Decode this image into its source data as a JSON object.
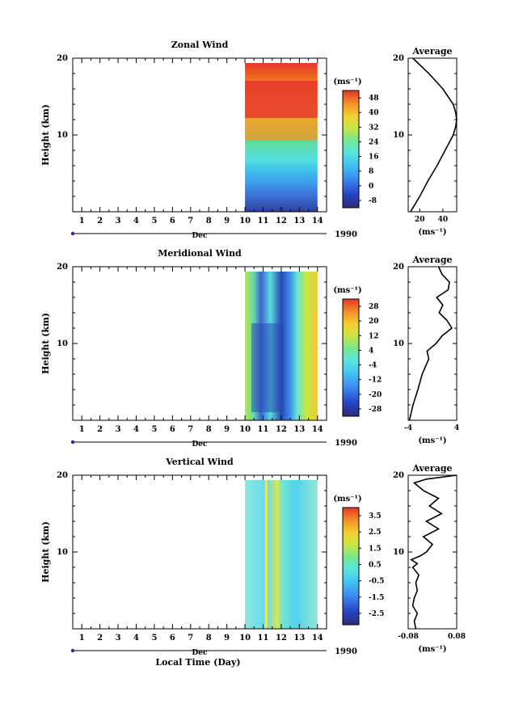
{
  "figure": {
    "xlabel_bottom": "Local Time (Day)",
    "month_label": "Dec",
    "year_label": "1990",
    "x_ticks": [
      "1",
      "2",
      "3",
      "4",
      "5",
      "6",
      "7",
      "8",
      "9",
      "10",
      "11",
      "12",
      "13",
      "14"
    ],
    "ylabel": "Height (km)",
    "y_ticks": [
      "10",
      "20"
    ],
    "avg_title": "Average",
    "unit": "(ms⁻¹)"
  },
  "chart_data": [
    {
      "type": "heatmap",
      "title": "Zonal Wind",
      "ylabel": "Height (km)",
      "xlim": [
        0.5,
        14.5
      ],
      "ylim": [
        0,
        20
      ],
      "data_x_range": [
        10,
        14
      ],
      "colorbar": {
        "label": "(ms⁻¹)",
        "ticks": [
          "48",
          "40",
          "32",
          "24",
          "16",
          "8",
          "0",
          "-8"
        ],
        "range": [
          -12,
          52
        ]
      },
      "average": {
        "title": "Average",
        "xlabel": "(ms⁻¹)",
        "x_ticks": [
          "20",
          "40"
        ],
        "xlim": [
          10,
          52
        ],
        "profile_height": [
          0,
          2,
          4,
          6,
          8,
          10,
          11,
          12,
          13,
          14,
          16,
          18,
          20
        ],
        "profile_value": [
          12,
          20,
          27,
          35,
          42,
          49,
          51,
          52,
          51,
          49,
          40,
          28,
          14
        ]
      }
    },
    {
      "type": "heatmap",
      "title": "Meridional Wind",
      "ylabel": "Height (km)",
      "xlim": [
        0.5,
        14.5
      ],
      "ylim": [
        0,
        20
      ],
      "data_x_range": [
        10,
        14
      ],
      "colorbar": {
        "label": "(ms⁻¹)",
        "ticks": [
          "28",
          "20",
          "12",
          "4",
          "-4",
          "-12",
          "-20",
          "-28"
        ],
        "range": [
          -32,
          32
        ]
      },
      "average": {
        "title": "Average",
        "xlabel": "(ms⁻¹)",
        "x_ticks": [
          "-4",
          "4"
        ],
        "xlim": [
          -4,
          4
        ],
        "profile_height": [
          0,
          2,
          4,
          6,
          8,
          9,
          10,
          11,
          12,
          13,
          14,
          15,
          16,
          17,
          18,
          19,
          20
        ],
        "profile_value": [
          -3.8,
          -3.2,
          -2.4,
          -1.7,
          -0.6,
          -0.9,
          0.6,
          1.6,
          3.2,
          2.4,
          1.1,
          1.7,
          0.7,
          2.6,
          2.8,
          1.6,
          1.0
        ]
      }
    },
    {
      "type": "heatmap",
      "title": "Vertical Wind",
      "ylabel": "Height (km)",
      "xlim": [
        0.5,
        14.5
      ],
      "ylim": [
        0,
        20
      ],
      "data_x_range": [
        10,
        14
      ],
      "colorbar": {
        "label": "(ms⁻¹)",
        "ticks": [
          "3.5",
          "2.5",
          "1.5",
          "0.5",
          "-0.5",
          "-1.5",
          "-2.5"
        ],
        "range": [
          -3.2,
          4.0
        ]
      },
      "average": {
        "title": "Average",
        "xlabel": "(ms⁻¹)",
        "x_ticks": [
          "-0.08",
          "0.08"
        ],
        "xlim": [
          -0.08,
          0.08
        ],
        "profile_height": [
          0,
          1,
          2,
          3,
          4,
          5,
          6,
          7,
          8,
          8.5,
          9,
          9.5,
          10,
          11,
          12,
          13,
          14,
          15,
          16,
          17,
          18,
          19,
          19.5,
          20
        ],
        "profile_value": [
          -0.055,
          -0.06,
          -0.05,
          -0.065,
          -0.06,
          -0.05,
          -0.055,
          -0.045,
          -0.065,
          -0.05,
          -0.07,
          -0.04,
          -0.02,
          0.0,
          -0.03,
          0.02,
          -0.02,
          0.03,
          -0.01,
          0.02,
          -0.03,
          -0.06,
          -0.02,
          0.08
        ]
      }
    }
  ]
}
